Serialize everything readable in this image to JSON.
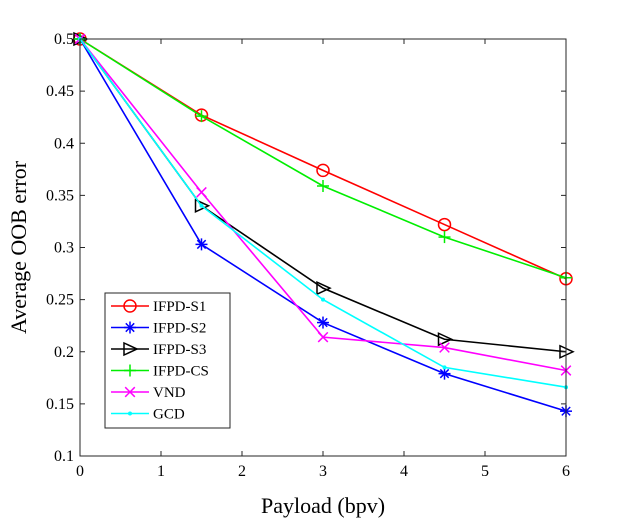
{
  "chart_data": {
    "type": "line",
    "title": "",
    "xlabel": "Payload (bpv)",
    "ylabel": "Average OOB error",
    "xlim": [
      0,
      6
    ],
    "ylim": [
      0.1,
      0.5
    ],
    "xticks": [
      0,
      1,
      2,
      3,
      4,
      5,
      6
    ],
    "yticks": [
      0.1,
      0.15,
      0.2,
      0.25,
      0.3,
      0.35,
      0.4,
      0.45,
      0.5
    ],
    "xtick_labels": [
      "0",
      "1",
      "2",
      "3",
      "4",
      "5",
      "6"
    ],
    "ytick_labels": [
      "0.1",
      "0.15",
      "0.2",
      "0.25",
      "0.3",
      "0.35",
      "0.4",
      "0.45",
      "0.5"
    ],
    "x": [
      0,
      1.5,
      3,
      4.5,
      6
    ],
    "grid": false,
    "legend_position": "bottom-left",
    "series": [
      {
        "name": "IFPD-S1",
        "color": "#ff0000",
        "marker": "circle",
        "values": [
          0.5,
          0.427,
          0.374,
          0.322,
          0.27
        ]
      },
      {
        "name": "IFPD-S2",
        "color": "#0000ff",
        "marker": "asterisk",
        "values": [
          0.5,
          0.303,
          0.228,
          0.179,
          0.143
        ]
      },
      {
        "name": "IFPD-S3",
        "color": "#000000",
        "marker": "triangle-right",
        "values": [
          0.5,
          0.34,
          0.261,
          0.212,
          0.2
        ]
      },
      {
        "name": "IFPD-CS",
        "color": "#00ee00",
        "marker": "plus",
        "values": [
          0.5,
          0.426,
          0.359,
          0.31,
          0.271
        ]
      },
      {
        "name": "VND",
        "color": "#ff00ff",
        "marker": "x",
        "values": [
          0.5,
          0.353,
          0.214,
          0.204,
          0.182
        ]
      },
      {
        "name": "GCD",
        "color": "#00ffff",
        "marker": "point",
        "values": [
          0.5,
          0.34,
          0.25,
          0.185,
          0.166
        ]
      }
    ]
  }
}
